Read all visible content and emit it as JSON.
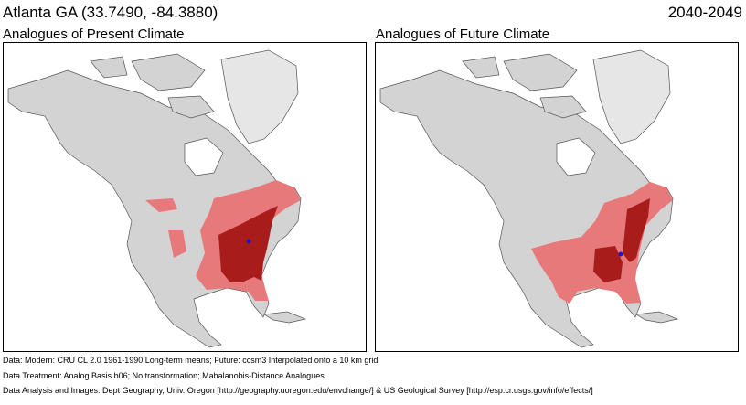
{
  "header": {
    "location": "Atlanta GA  (33.7490, -84.3880)",
    "period": "2040-2049"
  },
  "panels": [
    {
      "title": "Analogues of Present Climate"
    },
    {
      "title": "Analogues of Future Climate"
    }
  ],
  "footer": {
    "data_line": "Data:  Modern: CRU CL 2.0 1961-1990 Long-term means; Future: ccsm3 Interpolated onto a 10 km grid",
    "treatment_line": "Data Treatment:  Analog Basis b06; No transformation; Mahalanobis-Distance Analogues",
    "analysis_line": "Data Analysis and Images:  Dept Geography, Univ. Oregon [http://geography.uoregon.edu/envchange/] & US Geological Survey [http://esp.cr.usgs.gov/info/effects/]"
  },
  "colors": {
    "land": "#d3d3d3",
    "ocean": "#ffffff",
    "analog_moderate": "#e8797b",
    "analog_strong": "#a81c1c",
    "target_point": "#1a1acc",
    "greenland": "#e6e6e6"
  }
}
